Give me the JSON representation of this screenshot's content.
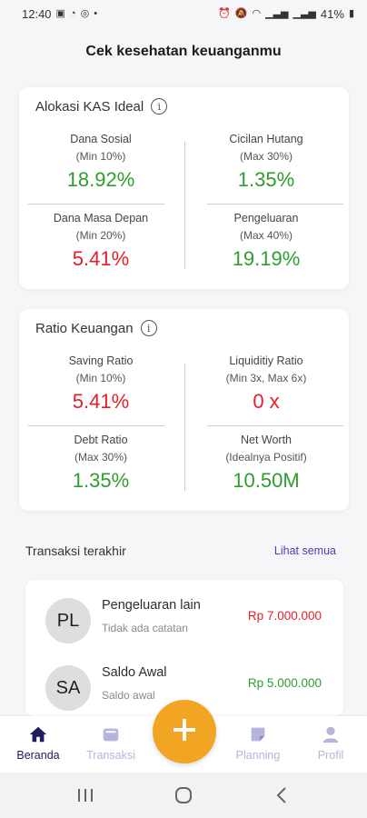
{
  "status_bar": {
    "time": "12:40",
    "battery": "41%"
  },
  "page_title": "Cek kesehatan keuanganmu",
  "alokasi": {
    "title": "Alokasi KAS Ideal",
    "metrics": [
      {
        "label": "Dana Sosial",
        "sub": "(Min 10%)",
        "value": "18.92%",
        "status": "good"
      },
      {
        "label": "Cicilan Hutang",
        "sub": "(Max 30%)",
        "value": "1.35%",
        "status": "good"
      },
      {
        "label": "Dana Masa Depan",
        "sub": "(Min 20%)",
        "value": "5.41%",
        "status": "bad"
      },
      {
        "label": "Pengeluaran",
        "sub": "(Max 40%)",
        "value": "19.19%",
        "status": "good"
      }
    ]
  },
  "ratio": {
    "title": "Ratio Keuangan",
    "metrics": [
      {
        "label": "Saving Ratio",
        "sub": "(Min 10%)",
        "value": "5.41%",
        "status": "bad"
      },
      {
        "label": "Liquiditiy Ratio",
        "sub": "(Min 3x, Max 6x)",
        "value": "0 x",
        "status": "bad"
      },
      {
        "label": "Debt Ratio",
        "sub": "(Max 30%)",
        "value": "1.35%",
        "status": "good"
      },
      {
        "label": "Net Worth",
        "sub": "(Idealnya Positif)",
        "value": "10.50M",
        "status": "good"
      }
    ]
  },
  "transactions": {
    "title": "Transaksi terakhir",
    "see_all": "Lihat semua",
    "items": [
      {
        "initials": "PL",
        "name": "Pengeluaran lain",
        "note": "Tidak ada catatan",
        "amount": "Rp 7.000.000",
        "type": "expense"
      },
      {
        "initials": "SA",
        "name": "Saldo Awal",
        "note": "Saldo awal",
        "amount": "Rp 5.000.000",
        "type": "income"
      }
    ]
  },
  "bottom_nav": {
    "items": [
      {
        "label": "Beranda",
        "icon": "home-icon",
        "active": true
      },
      {
        "label": "Transaksi",
        "icon": "wallet-icon",
        "active": false
      },
      {
        "label": "Planning",
        "icon": "note-icon",
        "active": false
      },
      {
        "label": "Profil",
        "icon": "person-icon",
        "active": false
      }
    ],
    "fab_icon": "plus-icon"
  },
  "colors": {
    "good": "#2e9e2e",
    "bad": "#e3202a",
    "accent": "#f2a523",
    "nav_active": "#1f1c5a",
    "nav_inactive": "#b7b4dc",
    "link": "#4a3fb5"
  }
}
